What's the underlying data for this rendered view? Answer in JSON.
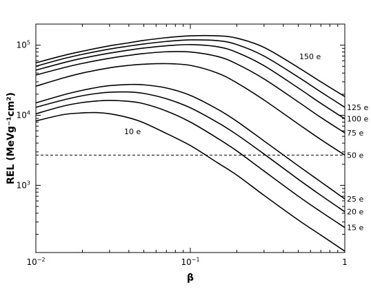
{
  "chart_data": {
    "type": "line",
    "title": "",
    "xlabel": "β",
    "ylabel": "REL (MeVg⁻¹cm²)",
    "xscale": "log",
    "yscale": "log",
    "xlim": [
      0.01,
      1.0
    ],
    "ylim": [
      110,
      200000
    ],
    "grid": false,
    "x_ticks": [
      {
        "value": 0.01,
        "base": "10",
        "exp": "−2"
      },
      {
        "value": 0.1,
        "base": "10",
        "exp": "−1"
      },
      {
        "value": 1,
        "base": "1",
        "exp": ""
      }
    ],
    "y_ticks": [
      {
        "value": 1000,
        "base": "10",
        "exp": "3"
      },
      {
        "value": 10000,
        "base": "10",
        "exp": "4"
      },
      {
        "value": 100000,
        "base": "10",
        "exp": "5"
      }
    ],
    "reference_line": {
      "y": 2700,
      "style": "dashed"
    },
    "series": [
      {
        "name": "10 e",
        "x": [
          0.01,
          0.015,
          0.02,
          0.025,
          0.03,
          0.04,
          0.05,
          0.07,
          0.1,
          0.15,
          0.2,
          0.3,
          0.5,
          0.7,
          1.0
        ],
        "y": [
          8300,
          10200,
          10800,
          10900,
          10500,
          9200,
          7800,
          5500,
          3700,
          2100,
          1400,
          720,
          320,
          195,
          115
        ]
      },
      {
        "name": "15 e",
        "x": [
          0.01,
          0.015,
          0.02,
          0.025,
          0.03,
          0.04,
          0.05,
          0.07,
          0.1,
          0.15,
          0.2,
          0.3,
          0.5,
          0.7,
          1.0
        ],
        "y": [
          10500,
          13500,
          15200,
          16000,
          16300,
          15800,
          14600,
          11500,
          8000,
          4700,
          3100,
          1600,
          700,
          420,
          250
        ]
      },
      {
        "name": "20 e",
        "x": [
          0.01,
          0.015,
          0.02,
          0.025,
          0.03,
          0.04,
          0.05,
          0.07,
          0.1,
          0.15,
          0.2,
          0.3,
          0.5,
          0.7,
          1.0
        ],
        "y": [
          13000,
          16500,
          19000,
          20500,
          21300,
          21500,
          20500,
          17200,
          12800,
          7900,
          5300,
          2800,
          1220,
          720,
          420
        ]
      },
      {
        "name": "25 e",
        "x": [
          0.01,
          0.015,
          0.02,
          0.025,
          0.03,
          0.04,
          0.05,
          0.07,
          0.1,
          0.15,
          0.2,
          0.3,
          0.5,
          0.7,
          1.0
        ],
        "y": [
          15000,
          19500,
          22700,
          25000,
          26500,
          27500,
          27200,
          24500,
          19200,
          12200,
          8200,
          4300,
          1900,
          1120,
          640
        ]
      },
      {
        "name": "50 e",
        "x": [
          0.01,
          0.015,
          0.02,
          0.03,
          0.04,
          0.05,
          0.07,
          0.1,
          0.15,
          0.2,
          0.3,
          0.5,
          0.7,
          1.0
        ],
        "y": [
          26000,
          34000,
          40000,
          47500,
          51500,
          53500,
          54500,
          51500,
          40000,
          29000,
          16500,
          7500,
          4500,
          2700
        ]
      },
      {
        "name": "75 e",
        "x": [
          0.01,
          0.015,
          0.02,
          0.03,
          0.04,
          0.05,
          0.07,
          0.1,
          0.15,
          0.2,
          0.3,
          0.5,
          0.7,
          1.0
        ],
        "y": [
          37500,
          47500,
          55000,
          65000,
          71500,
          76000,
          80500,
          80000,
          69000,
          54000,
          33000,
          15500,
          9300,
          5600
        ]
      },
      {
        "name": "100 e",
        "x": [
          0.01,
          0.015,
          0.02,
          0.03,
          0.04,
          0.05,
          0.07,
          0.1,
          0.15,
          0.2,
          0.3,
          0.5,
          0.7,
          1.0
        ],
        "y": [
          44000,
          56000,
          65000,
          77000,
          85000,
          91000,
          98000,
          102000,
          95000,
          79000,
          51000,
          24500,
          14800,
          8900
        ]
      },
      {
        "name": "125 e",
        "x": [
          0.01,
          0.015,
          0.02,
          0.03,
          0.04,
          0.05,
          0.07,
          0.1,
          0.15,
          0.2,
          0.3,
          0.5,
          0.7,
          1.0
        ],
        "y": [
          50000,
          64000,
          74000,
          88000,
          97000,
          104000,
          113000,
          119000,
          116000,
          102000,
          70000,
          35000,
          21500,
          13000
        ]
      },
      {
        "name": "150 e",
        "x": [
          0.01,
          0.015,
          0.02,
          0.03,
          0.04,
          0.05,
          0.07,
          0.1,
          0.15,
          0.2,
          0.3,
          0.5,
          0.7,
          1.0
        ],
        "y": [
          56000,
          71000,
          82000,
          98000,
          108000,
          117000,
          128000,
          136000,
          136000,
          126000,
          93000,
          48000,
          30000,
          18500
        ]
      }
    ]
  }
}
